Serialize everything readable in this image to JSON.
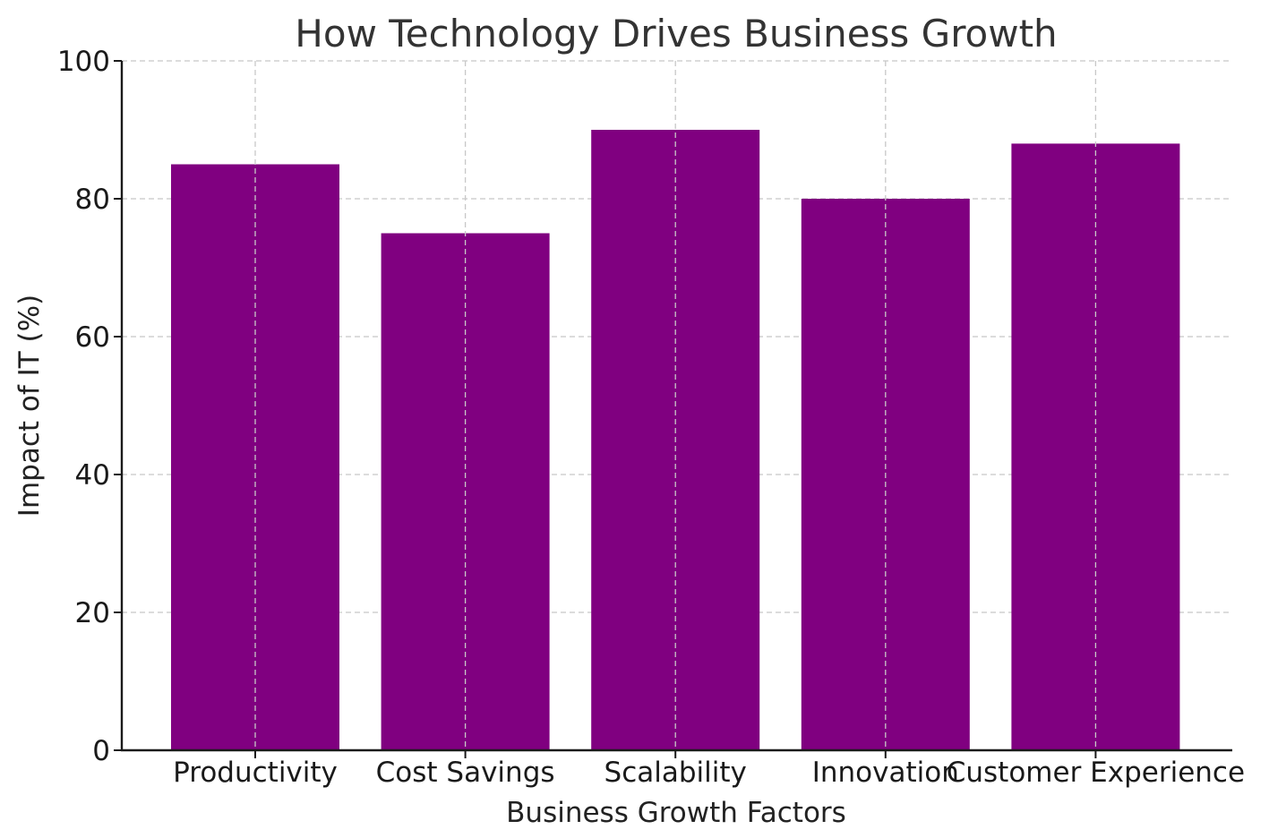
{
  "chart_data": {
    "type": "bar",
    "title": "How Technology Drives Business Growth",
    "xlabel": "Business Growth Factors",
    "ylabel": "Impact of IT (%)",
    "categories": [
      "Productivity",
      "Cost Savings",
      "Scalability",
      "Innovation",
      "Customer Experience"
    ],
    "values": [
      85,
      75,
      90,
      80,
      88
    ],
    "ylim": [
      0,
      100
    ],
    "yticks": [
      0,
      20,
      40,
      60,
      80,
      100
    ],
    "ytick_labels": [
      "0",
      "20",
      "40",
      "60",
      "80",
      "100"
    ],
    "grid": true,
    "bar_color": "#800080"
  }
}
